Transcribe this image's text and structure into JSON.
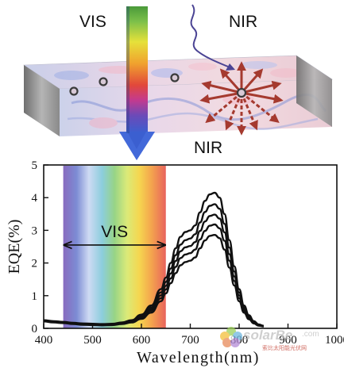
{
  "schematic": {
    "vis_label": "VIS",
    "nir_top_label": "NIR",
    "nir_bottom_label": "NIR",
    "colors": {
      "arrow": "#a53a2f",
      "incoming_nir": "#4b4494",
      "slab_edge": "#8d8d8d"
    }
  },
  "watermark": {
    "brand": "solarBe",
    "domain": ".com",
    "sub": "索比太阳能光伏网"
  },
  "chart_data": {
    "type": "line",
    "xlabel": "Wavelength(nm)",
    "ylabel": "EQE(%)",
    "xlim": [
      400,
      1000
    ],
    "ylim": [
      0,
      5
    ],
    "x_ticks": [
      400,
      500,
      600,
      700,
      800,
      900,
      1000
    ],
    "x_tick_labels": [
      "400",
      "500",
      "600",
      "700",
      "800",
      "900",
      "1000"
    ],
    "y_ticks": [
      0,
      1,
      2,
      3,
      4,
      5
    ],
    "y_tick_labels": [
      "0",
      "1",
      "2",
      "3",
      "4",
      "5"
    ],
    "grid": false,
    "vis_band": {
      "label": "VIS",
      "x_start": 440,
      "x_end": 650,
      "arrow_y": 2.55
    },
    "x": [
      400,
      420,
      440,
      460,
      480,
      500,
      520,
      540,
      560,
      580,
      600,
      620,
      640,
      650,
      660,
      670,
      680,
      690,
      700,
      710,
      720,
      730,
      740,
      750,
      760,
      770,
      780,
      790,
      800,
      810,
      820,
      830,
      840,
      850
    ],
    "series": [
      {
        "values": [
          0.25,
          0.22,
          0.2,
          0.17,
          0.15,
          0.14,
          0.13,
          0.14,
          0.18,
          0.25,
          0.42,
          0.7,
          1.2,
          1.55,
          2.0,
          2.45,
          2.8,
          2.95,
          3.0,
          3.15,
          3.55,
          3.9,
          4.1,
          4.15,
          4.0,
          3.5,
          2.7,
          1.9,
          1.2,
          0.7,
          0.4,
          0.22,
          0.12,
          0.08
        ]
      },
      {
        "values": [
          0.24,
          0.21,
          0.19,
          0.16,
          0.14,
          0.13,
          0.12,
          0.13,
          0.17,
          0.23,
          0.38,
          0.64,
          1.1,
          1.42,
          1.83,
          2.24,
          2.56,
          2.7,
          2.75,
          2.88,
          3.24,
          3.56,
          3.75,
          3.8,
          3.66,
          3.2,
          2.47,
          1.74,
          1.1,
          0.64,
          0.37,
          0.2,
          0.11,
          0.07
        ]
      },
      {
        "values": [
          0.23,
          0.2,
          0.18,
          0.15,
          0.13,
          0.12,
          0.11,
          0.12,
          0.16,
          0.22,
          0.35,
          0.59,
          1.01,
          1.3,
          1.68,
          2.06,
          2.36,
          2.48,
          2.52,
          2.64,
          2.98,
          3.27,
          3.44,
          3.48,
          3.36,
          2.94,
          2.27,
          1.59,
          1.01,
          0.59,
          0.34,
          0.18,
          0.1,
          0.07
        ]
      },
      {
        "values": [
          0.22,
          0.19,
          0.17,
          0.14,
          0.12,
          0.11,
          0.1,
          0.11,
          0.15,
          0.2,
          0.32,
          0.54,
          0.92,
          1.19,
          1.53,
          1.88,
          2.15,
          2.26,
          2.3,
          2.41,
          2.72,
          2.98,
          3.14,
          3.18,
          3.06,
          2.68,
          2.07,
          1.45,
          0.92,
          0.54,
          0.31,
          0.17,
          0.09,
          0.06
        ]
      },
      {
        "values": [
          0.21,
          0.18,
          0.16,
          0.13,
          0.11,
          0.1,
          0.09,
          0.1,
          0.13,
          0.18,
          0.29,
          0.48,
          0.83,
          1.07,
          1.38,
          1.69,
          1.93,
          2.03,
          2.07,
          2.17,
          2.45,
          2.69,
          2.83,
          2.86,
          2.76,
          2.41,
          1.86,
          1.31,
          0.83,
          0.48,
          0.28,
          0.15,
          0.08,
          0.06
        ]
      }
    ]
  }
}
